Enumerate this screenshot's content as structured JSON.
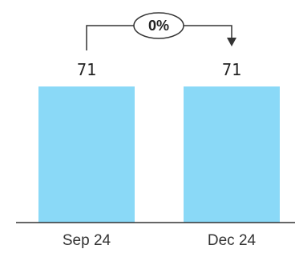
{
  "chart_data": {
    "type": "bar",
    "categories": [
      "Sep 24",
      "Dec 24"
    ],
    "values": [
      71,
      71
    ],
    "value_labels": [
      "71",
      "71"
    ],
    "change_label": "0%",
    "bar_color": "#8ad9f7",
    "axis_color": "#333333",
    "ylim": [
      0,
      71
    ]
  }
}
